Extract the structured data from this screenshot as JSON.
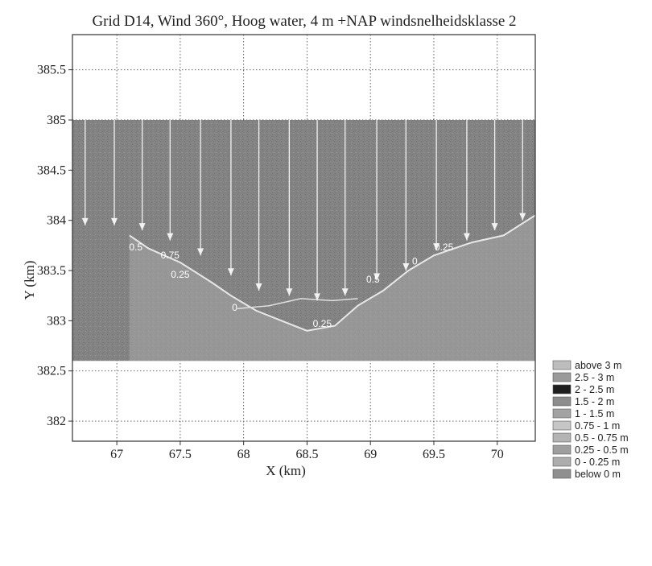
{
  "chart_data": {
    "type": "heatmap",
    "title": "Grid D14, Wind 360°, Hoog water, 4 m +NAP windsnelheidsklasse 2",
    "xlabel": "X (km)",
    "ylabel": "Y (km)",
    "xlim": [
      66.65,
      70.3
    ],
    "ylim": [
      381.8,
      385.85
    ],
    "grid": true,
    "x_ticks": [
      {
        "value": 67,
        "label": "67"
      },
      {
        "value": 67.5,
        "label": "67.5"
      },
      {
        "value": 68,
        "label": "68"
      },
      {
        "value": 68.5,
        "label": "68.5"
      },
      {
        "value": 69,
        "label": "69"
      },
      {
        "value": 69.5,
        "label": "69.5"
      },
      {
        "value": 70,
        "label": "70"
      }
    ],
    "y_ticks": [
      {
        "value": 382,
        "label": "382"
      },
      {
        "value": 382.5,
        "label": "382.5"
      },
      {
        "value": 383,
        "label": "383"
      },
      {
        "value": 383.5,
        "label": "383.5"
      },
      {
        "value": 384,
        "label": "384"
      },
      {
        "value": 384.5,
        "label": "384.5"
      },
      {
        "value": 385,
        "label": "385"
      },
      {
        "value": 385.5,
        "label": "385.5"
      }
    ],
    "domain_extent": {
      "x": [
        66.65,
        70.3
      ],
      "y": [
        382.6,
        385.0
      ]
    },
    "shoreline": [
      [
        67.1,
        383.85
      ],
      [
        67.25,
        383.72
      ],
      [
        67.5,
        383.58
      ],
      [
        67.75,
        383.38
      ],
      [
        67.9,
        383.25
      ],
      [
        68.1,
        383.1
      ],
      [
        68.3,
        383.0
      ],
      [
        68.5,
        382.9
      ],
      [
        68.72,
        382.95
      ],
      [
        68.9,
        383.15
      ],
      [
        69.1,
        383.3
      ],
      [
        69.3,
        383.5
      ],
      [
        69.5,
        383.65
      ],
      [
        69.8,
        383.78
      ],
      [
        70.05,
        383.85
      ],
      [
        70.3,
        384.05
      ]
    ],
    "shoreline_upper": [
      [
        67.95,
        383.12
      ],
      [
        68.2,
        383.15
      ],
      [
        68.45,
        383.22
      ],
      [
        68.7,
        383.2
      ],
      [
        68.9,
        383.22
      ]
    ],
    "vectors": {
      "direction": "south",
      "columns_x": [
        66.75,
        66.98,
        67.2,
        67.42,
        67.66,
        67.9,
        68.12,
        68.36,
        68.58,
        68.8,
        69.05,
        69.28,
        69.52,
        69.76,
        69.98,
        70.2
      ],
      "start_y": 385.0,
      "end_y": [
        383.95,
        383.95,
        383.9,
        383.8,
        383.65,
        383.45,
        383.3,
        383.25,
        383.2,
        383.25,
        383.4,
        383.5,
        383.7,
        383.8,
        383.9,
        384.0
      ]
    },
    "contour_labels": [
      {
        "text": "0.5",
        "x": 67.15,
        "y": 383.7
      },
      {
        "text": "0.75",
        "x": 67.42,
        "y": 383.62
      },
      {
        "text": "0.25",
        "x": 67.5,
        "y": 383.43
      },
      {
        "text": "0",
        "x": 67.93,
        "y": 383.1
      },
      {
        "text": "0.25",
        "x": 68.62,
        "y": 382.94
      },
      {
        "text": "0.5",
        "x": 69.02,
        "y": 383.38
      },
      {
        "text": "0",
        "x": 69.35,
        "y": 383.56
      },
      {
        "text": "0.25",
        "x": 69.58,
        "y": 383.7
      }
    ],
    "legend": {
      "placement": "right",
      "entries": [
        {
          "label": "above 3 m",
          "color": "#bdbdbd"
        },
        {
          "label": "2.5 - 3 m",
          "color": "#9a9a9a"
        },
        {
          "label": "2 - 2.5 m",
          "color": "#1f1f1f"
        },
        {
          "label": "1.5 - 2 m",
          "color": "#8c8c8c"
        },
        {
          "label": "1 - 1.5 m",
          "color": "#a3a3a3"
        },
        {
          "label": "0.75 - 1 m",
          "color": "#c6c6c6"
        },
        {
          "label": "0.5 - 0.75 m",
          "color": "#b3b3b3"
        },
        {
          "label": "0.25 - 0.5 m",
          "color": "#9e9e9e"
        },
        {
          "label": "0 - 0.25 m",
          "color": "#adadad"
        },
        {
          "label": "below 0 m",
          "color": "#8f8f8f"
        }
      ]
    },
    "colors": {
      "field": "#838383",
      "land": "#b0b0b0",
      "vectors": "#f2f2f2",
      "plot_background": "#ffffff"
    }
  }
}
